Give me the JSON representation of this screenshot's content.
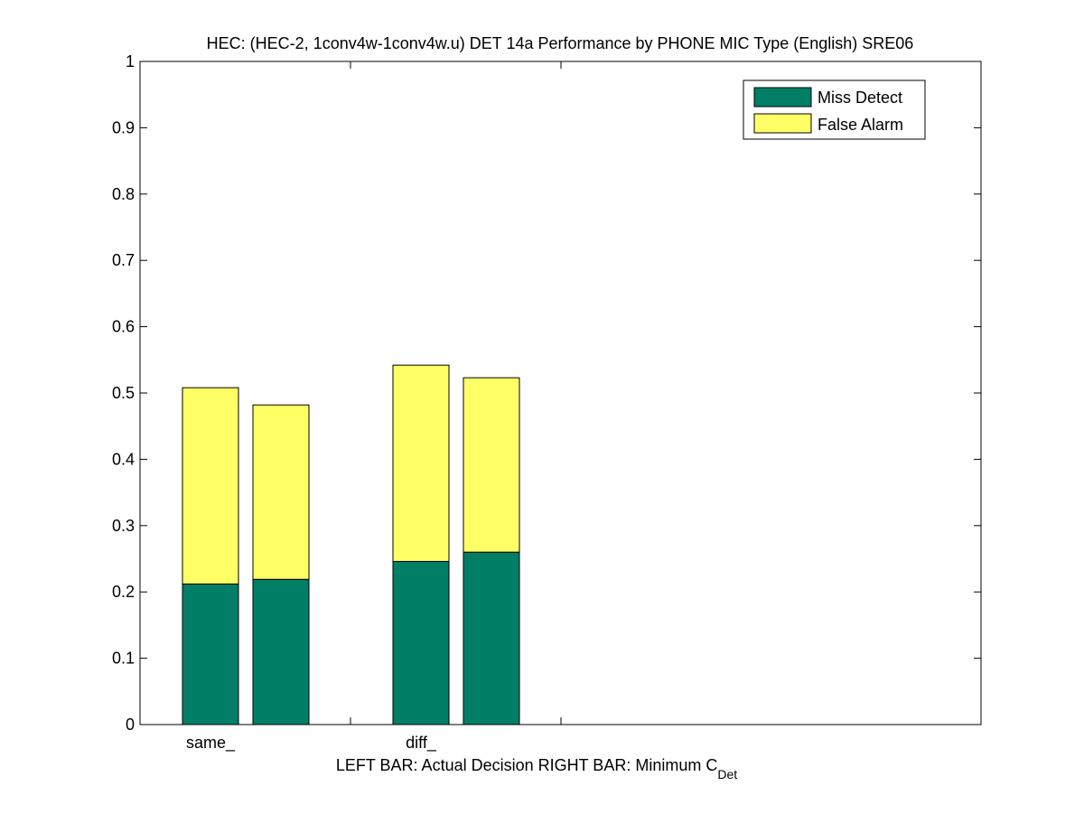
{
  "chart_data": {
    "type": "bar",
    "stacked": true,
    "title": "HEC: (HEC-2, 1conv4w-1conv4w.u) DET 14a Performance by PHONE MIC Type (English) SRE06",
    "xlabel_left": "LEFT BAR: Actual Decision",
    "xlabel_right": "RIGHT BAR: Minimum C",
    "xlabel_right_sub": "Det",
    "ylim": [
      0,
      1
    ],
    "yticks": [
      "0",
      "0.1",
      "0.2",
      "0.3",
      "0.4",
      "0.5",
      "0.6",
      "0.7",
      "0.8",
      "0.9",
      "1"
    ],
    "categories": [
      "same_",
      "diff_"
    ],
    "grid": false,
    "legend_position": "top-right",
    "series": [
      {
        "name": "Miss Detect",
        "color": "#007f66",
        "values": {
          "actual": [
            0.212,
            0.246
          ],
          "minimum": [
            0.219,
            0.26
          ]
        }
      },
      {
        "name": "False Alarm",
        "color": "#ffff66",
        "values": {
          "actual": [
            0.296,
            0.296
          ],
          "minimum": [
            0.263,
            0.263
          ]
        }
      }
    ]
  }
}
